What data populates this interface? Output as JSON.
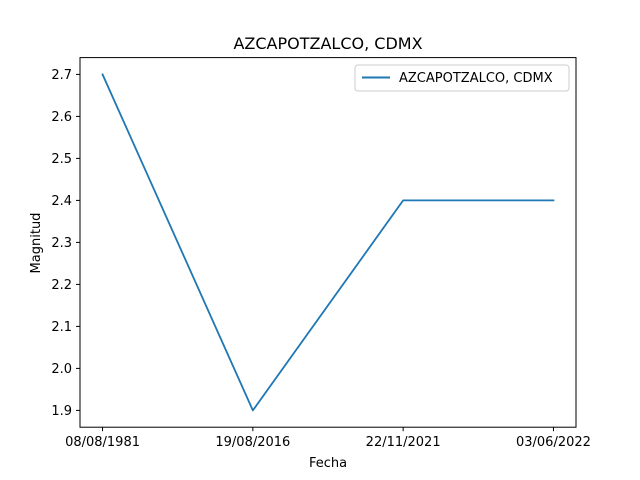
{
  "chart_data": {
    "type": "line",
    "title": "AZCAPOTZALCO, CDMX",
    "xlabel": "Fecha",
    "ylabel": "Magnitud",
    "categories": [
      "08/08/1981",
      "19/08/2016",
      "22/11/2021",
      "03/06/2022"
    ],
    "series": [
      {
        "name": "AZCAPOTZALCO, CDMX",
        "values": [
          2.7,
          1.9,
          2.4,
          2.4
        ],
        "color": "#1f77b4"
      }
    ],
    "ylim": [
      1.86,
      2.74
    ],
    "yticks": [
      "1.9",
      "2.0",
      "2.1",
      "2.2",
      "2.3",
      "2.4",
      "2.5",
      "2.6",
      "2.7"
    ],
    "grid": false,
    "legend_position": "upper right"
  }
}
